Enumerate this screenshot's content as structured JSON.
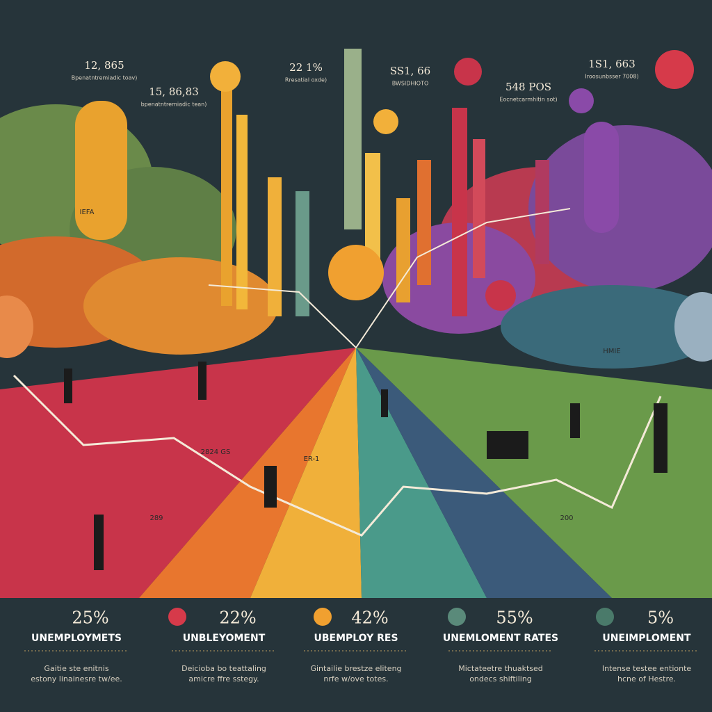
{
  "top_labels": [
    {
      "value": "12, 865",
      "caption": "Bpenatntremiadic toav)"
    },
    {
      "value": "15, 86,83",
      "caption": "bpenatntremiadic tean)"
    },
    {
      "value": "22 1%",
      "caption": "Rresatial oxde)"
    },
    {
      "value": "SS1, 66",
      "caption": "BWSIDHIOTO"
    },
    {
      "value": "548 POS",
      "caption": "Eocnetcarmhitin sot)"
    },
    {
      "value": "1S1, 663",
      "caption": "Iroosunbsser 7008)"
    }
  ],
  "scene_labels": [
    "IEFA",
    "2824 GS",
    "289",
    "200",
    "ER-1",
    "HMIE"
  ],
  "stats": [
    {
      "value": "25%",
      "title": "UNEMPLOYMETS",
      "text": "Gaitie ste enitnis estony linainesre tw/ee."
    },
    {
      "value": "22%",
      "title": "UNBLEYOMENT",
      "text": "Deicioba bo teattaling amicre ffre sstegy."
    },
    {
      "value": "42%",
      "title": "UBEMPLOY RES",
      "text": "Gintailie brestze eliteng nrfe w/ove totes."
    },
    {
      "value": "55%",
      "title": "UNEMLOMENT RATES",
      "text": "Mictateetre thuaktsed ondecs shiftiling"
    },
    {
      "value": "5%",
      "title": "UNEIMPLOMENT",
      "text": "Intense testee entionte hcne of Hestre."
    }
  ]
}
